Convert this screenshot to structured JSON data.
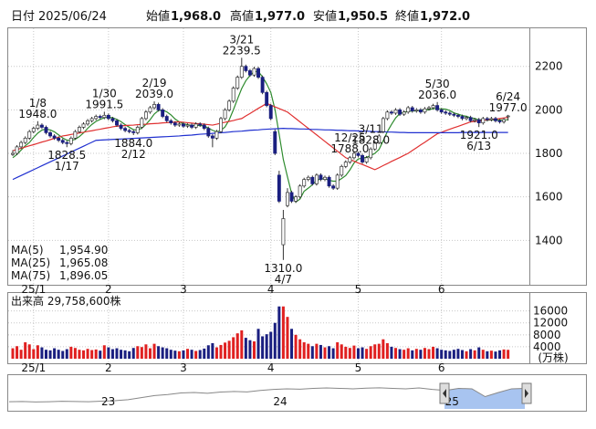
{
  "header": [
    {
      "label": "日付",
      "value": "2025/06/24",
      "color": "#000"
    },
    {
      "label": "始値",
      "value": "1,968.0",
      "color": "#000"
    },
    {
      "label": "高値",
      "value": "1,977.0",
      "color": "#e00000"
    },
    {
      "label": "安値",
      "value": "1,950.5",
      "color": "#008800"
    },
    {
      "label": "終値",
      "value": "1,972.0",
      "color": "#000"
    }
  ],
  "chart_data": {
    "type": "candlestick",
    "ylim": [
      1200,
      2375
    ],
    "yticks": [
      1400,
      1600,
      1800,
      2000,
      2200
    ],
    "grid": true,
    "up_color": "#ffffff",
    "down_color": "#1a1f80",
    "edge_color": "#333333",
    "xticks": [
      {
        "value": 5,
        "label": "25/1"
      },
      {
        "value": 23,
        "label": "2"
      },
      {
        "value": 41,
        "label": "3"
      },
      {
        "value": 62,
        "label": "4"
      },
      {
        "value": 83,
        "label": "5"
      },
      {
        "value": 103,
        "label": "6"
      }
    ],
    "candles": [
      [
        1795,
        1815,
        1788,
        1800
      ],
      [
        1800,
        1838,
        1792,
        1830
      ],
      [
        1830,
        1858,
        1822,
        1850
      ],
      [
        1850,
        1878,
        1842,
        1870
      ],
      [
        1870,
        1908,
        1862,
        1900
      ],
      [
        1900,
        1923,
        1892,
        1915
      ],
      [
        1915,
        1948,
        1907,
        1930
      ],
      [
        1930,
        1938,
        1912,
        1920
      ],
      [
        1920,
        1928,
        1887,
        1895
      ],
      [
        1895,
        1903,
        1872,
        1880
      ],
      [
        1880,
        1888,
        1862,
        1870
      ],
      [
        1870,
        1878,
        1852,
        1860
      ],
      [
        1860,
        1868,
        1842,
        1850
      ],
      [
        1850,
        1858,
        1828.5,
        1845
      ],
      [
        1845,
        1878,
        1837,
        1870
      ],
      [
        1870,
        1908,
        1862,
        1900
      ],
      [
        1900,
        1928,
        1892,
        1920
      ],
      [
        1920,
        1943,
        1912,
        1935
      ],
      [
        1935,
        1958,
        1927,
        1950
      ],
      [
        1950,
        1968,
        1942,
        1960
      ],
      [
        1960,
        1978,
        1952,
        1970
      ],
      [
        1970,
        1978,
        1957,
        1965
      ],
      [
        1965,
        1991.5,
        1957,
        1975
      ],
      [
        1975,
        1983,
        1952,
        1960
      ],
      [
        1960,
        1968,
        1942,
        1950
      ],
      [
        1950,
        1958,
        1922,
        1930
      ],
      [
        1930,
        1938,
        1907,
        1915
      ],
      [
        1915,
        1923,
        1897,
        1905
      ],
      [
        1905,
        1913,
        1892,
        1900
      ],
      [
        1900,
        1908,
        1884,
        1895
      ],
      [
        1895,
        1928,
        1887,
        1920
      ],
      [
        1920,
        1968,
        1912,
        1960
      ],
      [
        1960,
        1998,
        1952,
        1990
      ],
      [
        1990,
        2018,
        1982,
        2010
      ],
      [
        2010,
        2039,
        2002,
        2025
      ],
      [
        2025,
        2033,
        1992,
        2000
      ],
      [
        2000,
        2008,
        1962,
        1970
      ],
      [
        1970,
        1978,
        1942,
        1950
      ],
      [
        1950,
        1958,
        1932,
        1940
      ],
      [
        1940,
        1948,
        1922,
        1930
      ],
      [
        1930,
        1943,
        1922,
        1935
      ],
      [
        1935,
        1943,
        1917,
        1925
      ],
      [
        1925,
        1938,
        1917,
        1930
      ],
      [
        1930,
        1938,
        1912,
        1920
      ],
      [
        1920,
        1943,
        1912,
        1935
      ],
      [
        1935,
        1943,
        1922,
        1930
      ],
      [
        1930,
        1938,
        1907,
        1915
      ],
      [
        1915,
        1923,
        1872,
        1880
      ],
      [
        1880,
        1888,
        1828,
        1870
      ],
      [
        1870,
        1908,
        1862,
        1900
      ],
      [
        1900,
        1968,
        1892,
        1960
      ],
      [
        1960,
        2008,
        1952,
        2000
      ],
      [
        2000,
        2048,
        1992,
        2040
      ],
      [
        2040,
        2108,
        2032,
        2100
      ],
      [
        2100,
        2158,
        2092,
        2150
      ],
      [
        2150,
        2239.5,
        2142,
        2200
      ],
      [
        2200,
        2208,
        2172,
        2180
      ],
      [
        2180,
        2188,
        2152,
        2160
      ],
      [
        2160,
        2198,
        2152,
        2190
      ],
      [
        2190,
        2198,
        2142,
        2150
      ],
      [
        2150,
        2158,
        2072,
        2080
      ],
      [
        2080,
        2088,
        2012,
        2020
      ],
      [
        2020,
        2028,
        1952,
        1960
      ],
      [
        1900,
        1910,
        1792,
        1800
      ],
      [
        1700,
        1720,
        1572,
        1580
      ],
      [
        1380,
        1540,
        1310,
        1500
      ],
      [
        1560,
        1640,
        1552,
        1620
      ],
      [
        1620,
        1628,
        1572,
        1580
      ],
      [
        1580,
        1608,
        1572,
        1600
      ],
      [
        1600,
        1658,
        1592,
        1650
      ],
      [
        1650,
        1688,
        1642,
        1680
      ],
      [
        1680,
        1698,
        1672,
        1690
      ],
      [
        1690,
        1698,
        1652,
        1660
      ],
      [
        1660,
        1708,
        1652,
        1700
      ],
      [
        1700,
        1708,
        1672,
        1680
      ],
      [
        1680,
        1698,
        1672,
        1690
      ],
      [
        1690,
        1698,
        1642,
        1650
      ],
      [
        1650,
        1658,
        1632,
        1640
      ],
      [
        1640,
        1708,
        1632,
        1700
      ],
      [
        1700,
        1748,
        1692,
        1740
      ],
      [
        1740,
        1768,
        1732,
        1760
      ],
      [
        1760,
        1788,
        1752,
        1780
      ],
      [
        1780,
        1808,
        1772,
        1800
      ],
      [
        1800,
        1808,
        1782,
        1790
      ],
      [
        1790,
        1798,
        1752,
        1760
      ],
      [
        1760,
        1788,
        1752,
        1780
      ],
      [
        1780,
        1828,
        1772,
        1820
      ],
      [
        1820,
        1858,
        1812,
        1850
      ],
      [
        1850,
        1888,
        1842,
        1880
      ],
      [
        1900,
        1968,
        1892,
        1960
      ],
      [
        1960,
        1998,
        1952,
        1990
      ],
      [
        1990,
        1998,
        1977,
        1985
      ],
      [
        1985,
        2008,
        1977,
        2000
      ],
      [
        2000,
        2008,
        1972,
        1980
      ],
      [
        1980,
        1998,
        1972,
        1990
      ],
      [
        1990,
        2018,
        1982,
        2010
      ],
      [
        2010,
        2018,
        1987,
        1995
      ],
      [
        1995,
        2008,
        1987,
        2000
      ],
      [
        2000,
        2008,
        1982,
        1990
      ],
      [
        1990,
        2013,
        1982,
        2005
      ],
      [
        2005,
        2018,
        1997,
        2010
      ],
      [
        2010,
        2028,
        2002,
        2020
      ],
      [
        2020,
        2036,
        1992,
        2000
      ],
      [
        2000,
        2008,
        1982,
        1990
      ],
      [
        1990,
        1998,
        1977,
        1985
      ],
      [
        1985,
        1993,
        1972,
        1980
      ],
      [
        1980,
        1988,
        1967,
        1975
      ],
      [
        1975,
        1983,
        1962,
        1970
      ],
      [
        1970,
        1978,
        1952,
        1960
      ],
      [
        1960,
        1973,
        1952,
        1965
      ],
      [
        1965,
        1973,
        1942,
        1950
      ],
      [
        1950,
        1963,
        1942,
        1955
      ],
      [
        1955,
        1963,
        1921,
        1940
      ],
      [
        1940,
        1968,
        1932,
        1960
      ],
      [
        1960,
        1968,
        1947,
        1955
      ],
      [
        1955,
        1968,
        1947,
        1960
      ],
      [
        1960,
        1968,
        1942,
        1950
      ],
      [
        1950,
        1958,
        1937,
        1945
      ],
      [
        1945,
        1963,
        1937,
        1955
      ],
      [
        1968,
        1977,
        1950.5,
        1972
      ]
    ],
    "series": [
      {
        "name": "MA(5)",
        "color": "#2e8b2e",
        "latest": "1,954.90",
        "values": [
          1780,
          1795,
          1815,
          1835,
          1850,
          1873,
          1893,
          1907,
          1912,
          1908,
          1899,
          1885,
          1871,
          1861,
          1859,
          1865,
          1877,
          1894,
          1915,
          1933,
          1947,
          1956,
          1964,
          1966,
          1964,
          1956,
          1946,
          1932,
          1920,
          1909,
          1907,
          1916,
          1933,
          1955,
          1981,
          1997,
          1999,
          1991,
          1977,
          1958,
          1945,
          1936,
          1932,
          1928,
          1929,
          1928,
          1926,
          1916,
          1906,
          1899,
          1905,
          1922,
          1954,
          2000,
          2050,
          2098,
          2134,
          2158,
          2176,
          2176,
          2152,
          2120,
          2080,
          2002,
          1888,
          1772,
          1692,
          1616,
          1576,
          1590,
          1626,
          1640,
          1656,
          1676,
          1682,
          1684,
          1676,
          1672,
          1672,
          1684,
          1698,
          1724,
          1756,
          1774,
          1778,
          1782,
          1790,
          1800,
          1818,
          1858,
          1900,
          1933,
          1963,
          1983,
          1989,
          1993,
          1995,
          1995,
          1999,
          2000,
          2000,
          2006,
          2005,
          2005,
          2003,
          1997,
          1986,
          1980,
          1974,
          1970,
          1964,
          1960,
          1954,
          1954,
          1952,
          1954,
          1953,
          1954,
          1953,
          1955
        ]
      },
      {
        "name": "MA(25)",
        "color": "#e03030",
        "latest": "1,965.08",
        "values": [
          1812,
          1818,
          1823,
          1829,
          1835,
          1840,
          1846,
          1852,
          1857,
          1863,
          1869,
          1874,
          1880,
          1883,
          1887,
          1890,
          1894,
          1897,
          1901,
          1904,
          1908,
          1911,
          1915,
          1918,
          1922,
          1925,
          1926,
          1928,
          1929,
          1930,
          1932,
          1933,
          1934,
          1936,
          1937,
          1938,
          1940,
          1941,
          1942,
          1944,
          1945,
          1943,
          1941,
          1939,
          1937,
          1936,
          1934,
          1932,
          1930,
          1934,
          1939,
          1943,
          1947,
          1951,
          1956,
          1960,
          1972,
          1983,
          1995,
          2007,
          2018,
          2030,
          2022,
          2014,
          2006,
          1998,
          1990,
          1975,
          1960,
          1945,
          1930,
          1915,
          1900,
          1885,
          1870,
          1855,
          1840,
          1825,
          1810,
          1795,
          1780,
          1772,
          1764,
          1756,
          1749,
          1741,
          1733,
          1725,
          1734,
          1744,
          1753,
          1763,
          1772,
          1781,
          1791,
          1800,
          1813,
          1826,
          1839,
          1851,
          1864,
          1877,
          1890,
          1897,
          1904,
          1911,
          1918,
          1924,
          1931,
          1938,
          1945,
          1947,
          1949,
          1952,
          1954,
          1956,
          1958,
          1960,
          1963,
          1965
        ]
      },
      {
        "name": "MA(75)",
        "color": "#2030d0",
        "latest": "1,896.05",
        "values": [
          1680,
          1689,
          1698,
          1707,
          1716,
          1725,
          1734,
          1743,
          1752,
          1761,
          1770,
          1779,
          1788,
          1797,
          1806,
          1815,
          1824,
          1833,
          1842,
          1851,
          1860,
          1861,
          1862,
          1863,
          1864,
          1865,
          1866,
          1867,
          1868,
          1869,
          1870,
          1871,
          1872,
          1873,
          1874,
          1875,
          1876,
          1877,
          1878,
          1879,
          1880,
          1882,
          1883,
          1884,
          1886,
          1888,
          1889,
          1890,
          1892,
          1894,
          1895,
          1896,
          1898,
          1900,
          1901,
          1902,
          1904,
          1906,
          1907,
          1908,
          1910,
          1911,
          1912,
          1913,
          1914,
          1915,
          1914,
          1914,
          1913,
          1912,
          1912,
          1911,
          1910,
          1910,
          1909,
          1908,
          1908,
          1907,
          1906,
          1906,
          1905,
          1904,
          1904,
          1903,
          1902,
          1902,
          1901,
          1900,
          1900,
          1899,
          1898,
          1898,
          1897,
          1896,
          1896,
          1895,
          1895,
          1895,
          1895,
          1895,
          1895,
          1895,
          1895,
          1895,
          1895,
          1895,
          1895,
          1895,
          1896,
          1896,
          1896,
          1896,
          1896,
          1896,
          1896,
          1896,
          1896,
          1896,
          1896,
          1896
        ]
      }
    ],
    "annotations": [
      {
        "date": "12/25",
        "value": 1788,
        "label": "1788.0"
      },
      {
        "date": "1/8",
        "value": 1948,
        "label": "1948.0"
      },
      {
        "date": "1/17",
        "value": 1828.5,
        "label": "1828.5"
      },
      {
        "date": "1/30",
        "value": 1991.5,
        "label": "1991.5"
      },
      {
        "date": "2/12",
        "value": 1884,
        "label": "1884.0"
      },
      {
        "date": "2/19",
        "value": 2039,
        "label": "2039.0"
      },
      {
        "date": "3/11",
        "value": 1828,
        "label": "1828.0"
      },
      {
        "date": "3/21",
        "value": 2239.5,
        "label": "2239.5"
      },
      {
        "date": "4/7",
        "value": 1310,
        "label": "1310.0"
      },
      {
        "date": "5/30",
        "value": 2036,
        "label": "2036.0"
      },
      {
        "date": "6/13",
        "value": 1921,
        "label": "1921.0"
      },
      {
        "date": "6/24",
        "value": 1977,
        "label": "1977.0"
      }
    ],
    "volume": {
      "title": "出来高 29,758,600株",
      "unit": "(万株)",
      "up_color": "#e02020",
      "down_color": "#1a1f80",
      "ylim": [
        0,
        22000
      ],
      "yticks": [
        4000,
        8000,
        12000,
        16000
      ],
      "values": [
        3500,
        4200,
        3000,
        5500,
        4800,
        3200,
        4500,
        3800,
        3000,
        2800,
        3500,
        3000,
        2600,
        3200,
        4000,
        3600,
        3000,
        2800,
        3300,
        2900,
        3100,
        2700,
        4500,
        3800,
        3200,
        3500,
        3000,
        2800,
        2500,
        3600,
        4200,
        3900,
        4800,
        3500,
        5000,
        4200,
        3800,
        3500,
        3000,
        2700,
        2500,
        2800,
        3300,
        3000,
        2600,
        2900,
        3400,
        4500,
        5200,
        3800,
        4600,
        5400,
        6000,
        7200,
        8500,
        9500,
        7000,
        6200,
        5800,
        10000,
        7500,
        8200,
        9000,
        12000,
        17500,
        17500,
        14000,
        10000,
        8000,
        6500,
        5500,
        5000,
        4200,
        5000,
        4600,
        3800,
        4200,
        3500,
        5500,
        4800,
        4000,
        3600,
        4400,
        3500,
        3800,
        3300,
        4200,
        4800,
        5000,
        6500,
        5200,
        4000,
        3600,
        3200,
        3000,
        3500,
        2800,
        3300,
        3000,
        3600,
        3200,
        4000,
        3500,
        3000,
        2800,
        2600,
        3000,
        3300,
        2900,
        2500,
        3200,
        2800,
        3800,
        3000,
        2500,
        2700,
        2400,
        2800,
        3100,
        2976
      ]
    },
    "navigator": {
      "ylim": [
        1000,
        2600
      ],
      "color": "#888888",
      "fill": "#a8c4f0",
      "xticks": [
        {
          "value": 7.5,
          "label": "23"
        },
        {
          "value": 20.5,
          "label": "24"
        },
        {
          "value": 33.5,
          "label": "25"
        }
      ],
      "values": [
        1350,
        1360,
        1340,
        1350,
        1370,
        1360,
        1350,
        1380,
        1400,
        1450,
        1550,
        1650,
        1700,
        1780,
        1800,
        1760,
        1820,
        1850,
        1830,
        1900,
        1950,
        1980,
        1960,
        2000,
        2020,
        2000,
        1980,
        2010,
        2030,
        2000,
        1980,
        2020,
        1950,
        1900,
        2000,
        1980,
        1600,
        1800,
        1980,
        2000
      ]
    }
  }
}
